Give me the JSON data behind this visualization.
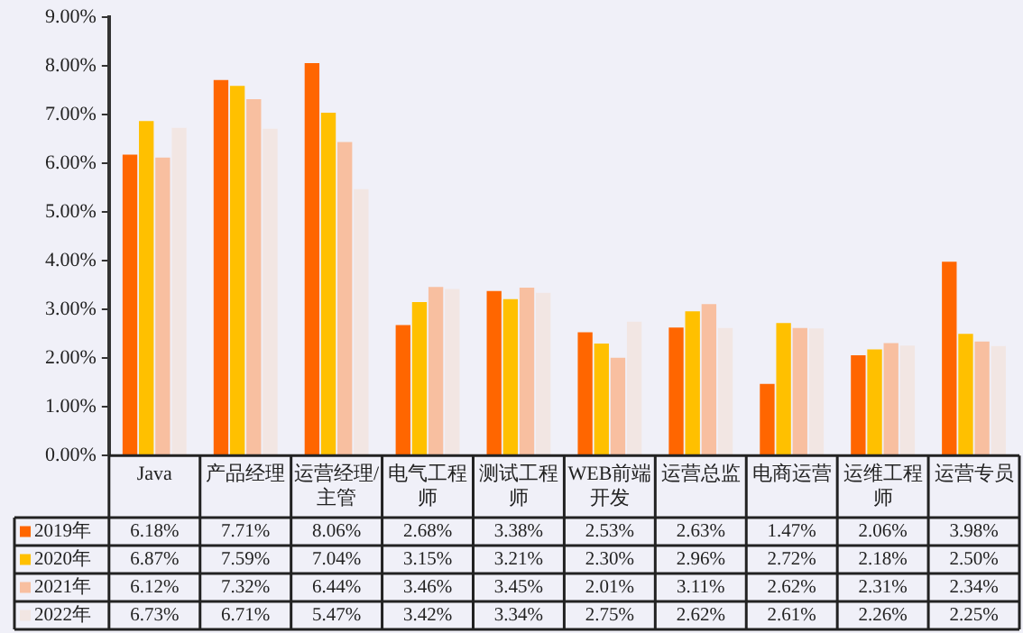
{
  "chart_data": {
    "type": "bar",
    "categories": [
      "Java",
      "产品经理",
      "运营经理/主管",
      "电气工程师",
      "测试工程师",
      "WEB前端开发",
      "运营总监",
      "电商运营",
      "运维工程师",
      "运营专员"
    ],
    "series": [
      {
        "name": "2019年",
        "color": "#ff6600",
        "values": [
          6.18,
          7.71,
          8.06,
          2.68,
          3.38,
          2.53,
          2.63,
          1.47,
          2.06,
          3.98
        ],
        "value_labels": [
          "6.18%",
          "7.71%",
          "8.06%",
          "2.68%",
          "3.38%",
          "2.53%",
          "2.63%",
          "1.47%",
          "2.06%",
          "3.98%"
        ]
      },
      {
        "name": "2020年",
        "color": "#ffc000",
        "values": [
          6.87,
          7.59,
          7.04,
          3.15,
          3.21,
          2.3,
          2.96,
          2.72,
          2.18,
          2.5
        ],
        "value_labels": [
          "6.87%",
          "7.59%",
          "7.04%",
          "3.15%",
          "3.21%",
          "2.30%",
          "2.96%",
          "2.72%",
          "2.18%",
          "2.50%"
        ]
      },
      {
        "name": "2021年",
        "color": "#f8bfa0",
        "values": [
          6.12,
          7.32,
          6.44,
          3.46,
          3.45,
          2.01,
          3.11,
          2.62,
          2.31,
          2.34
        ],
        "value_labels": [
          "6.12%",
          "7.32%",
          "6.44%",
          "3.46%",
          "3.45%",
          "2.01%",
          "3.11%",
          "2.62%",
          "2.31%",
          "2.34%"
        ]
      },
      {
        "name": "2022年",
        "color": "#f2e6e3",
        "values": [
          6.73,
          6.71,
          5.47,
          3.42,
          3.34,
          2.75,
          2.62,
          2.61,
          2.26,
          2.25
        ],
        "value_labels": [
          "6.73%",
          "6.71%",
          "5.47%",
          "3.42%",
          "3.34%",
          "2.75%",
          "2.62%",
          "2.61%",
          "2.26%",
          "2.25%"
        ]
      }
    ],
    "ylim": [
      0,
      9
    ],
    "yticks": [
      {
        "value": 0,
        "label": "0.00%"
      },
      {
        "value": 1,
        "label": "1.00%"
      },
      {
        "value": 2,
        "label": "2.00%"
      },
      {
        "value": 3,
        "label": "3.00%"
      },
      {
        "value": 4,
        "label": "4.00%"
      },
      {
        "value": 5,
        "label": "5.00%"
      },
      {
        "value": 6,
        "label": "6.00%"
      },
      {
        "value": 7,
        "label": "7.00%"
      },
      {
        "value": 8,
        "label": "8.00%"
      },
      {
        "value": 9,
        "label": "9.00%"
      }
    ],
    "legend": "bottom",
    "grid": false
  }
}
